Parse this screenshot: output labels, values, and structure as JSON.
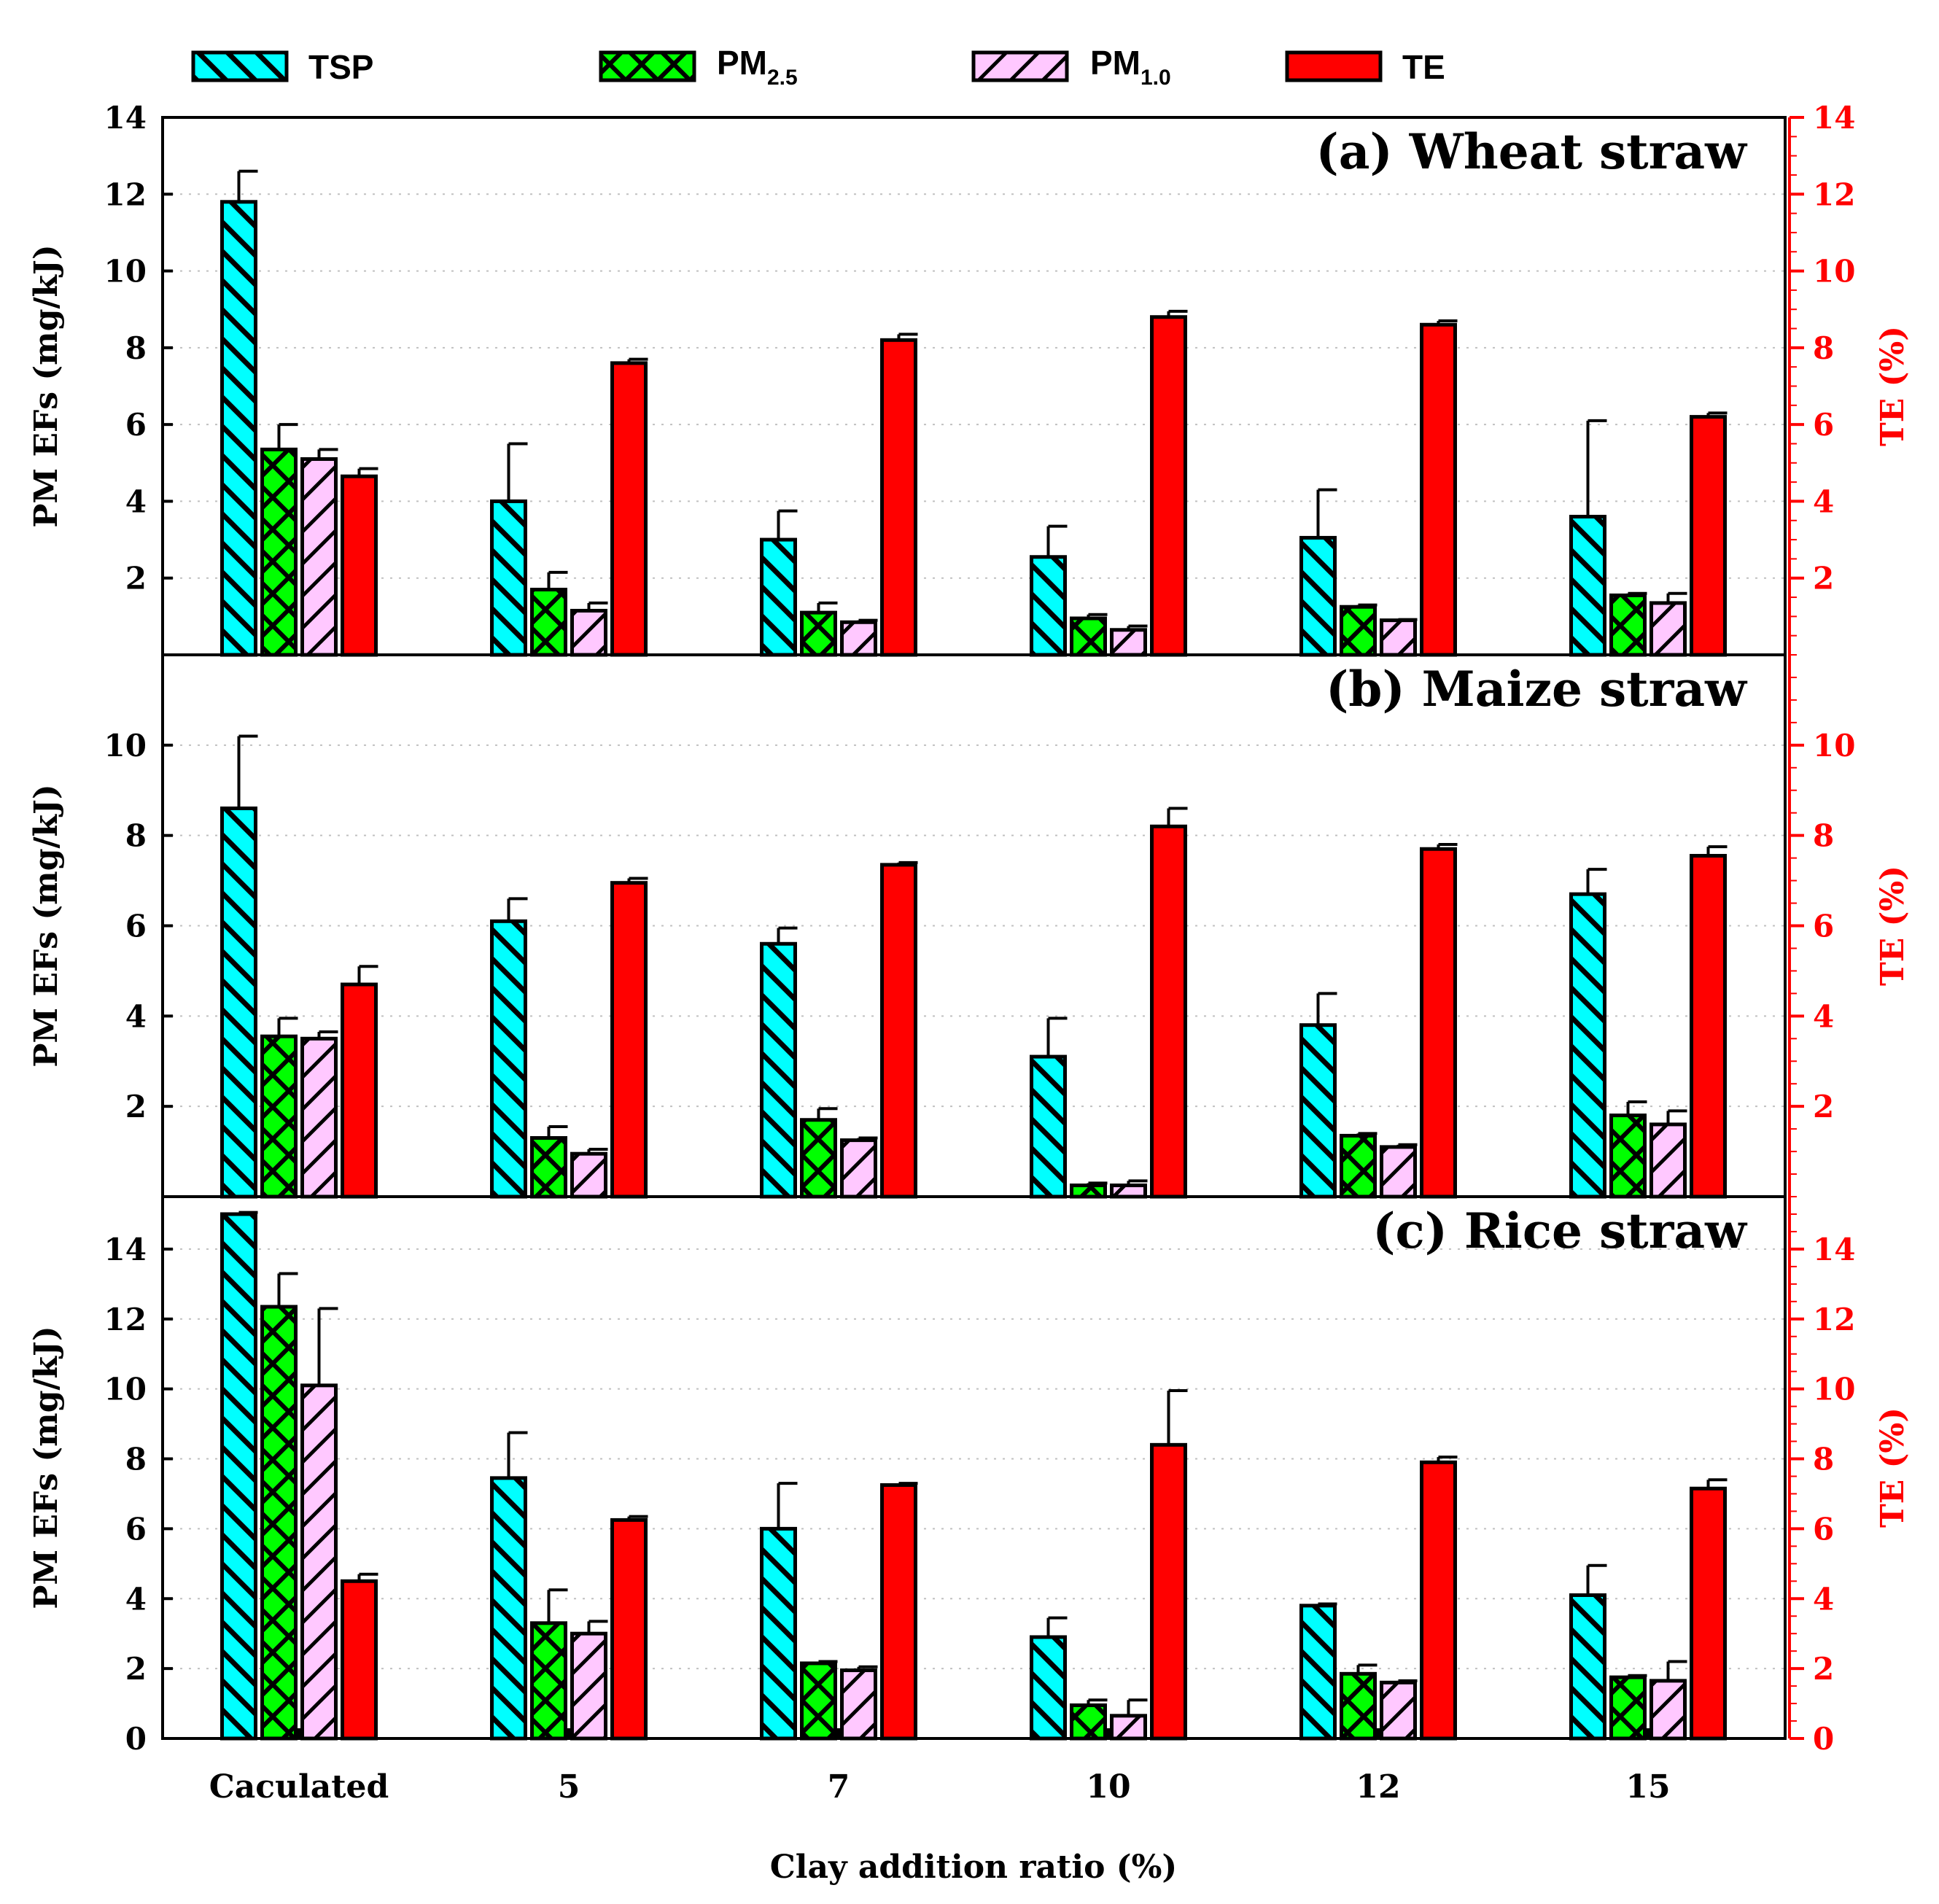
{
  "legend": [
    {
      "key": "tsp",
      "label": "TSP",
      "sub": "",
      "fill": "#00ffff",
      "pattern": "hatch-back"
    },
    {
      "key": "pm25",
      "label": "PM",
      "sub": "2.5",
      "fill": "#00ff00",
      "pattern": "cross"
    },
    {
      "key": "pm10",
      "label": "PM",
      "sub": "1.0",
      "fill": "#ffc8ff",
      "pattern": "hatch-fwd"
    },
    {
      "key": "te",
      "label": "TE",
      "sub": "",
      "fill": "#ff0000",
      "pattern": "solid"
    }
  ],
  "axes": {
    "left_label": "PM EFs  (mg/kJ)",
    "right_label": "TE (%)",
    "x_label": "Clay addition ratio (%)"
  },
  "colors": {
    "right_axis": "#ff0000",
    "tsp": "#00ffff",
    "pm25": "#00ff00",
    "pm10": "#ffc8ff",
    "te": "#ff0000"
  },
  "chart_data": [
    {
      "type": "bar",
      "title": "(a) Wheat straw",
      "categories": [
        "Caculated",
        "5",
        "7",
        "10",
        "12",
        "15"
      ],
      "ylim": [
        0,
        14
      ],
      "yticks": [
        2,
        4,
        6,
        8,
        10,
        12,
        14
      ],
      "series": [
        {
          "name": "TSP",
          "values": [
            11.8,
            4.0,
            3.0,
            2.55,
            3.05,
            3.6
          ],
          "errors": [
            0.8,
            1.5,
            0.75,
            0.8,
            1.25,
            2.5
          ]
        },
        {
          "name": "PM2.5",
          "values": [
            5.35,
            1.7,
            1.1,
            0.95,
            1.25,
            1.55
          ],
          "errors": [
            0.65,
            0.45,
            0.25,
            0.1,
            0.05,
            0.05
          ]
        },
        {
          "name": "PM1.0",
          "values": [
            5.1,
            1.15,
            0.85,
            0.65,
            0.9,
            1.35
          ],
          "errors": [
            0.25,
            0.2,
            0.05,
            0.1,
            0.02,
            0.25
          ]
        },
        {
          "name": "TE",
          "values": [
            4.65,
            7.6,
            8.2,
            8.8,
            8.6,
            6.2
          ],
          "errors": [
            0.2,
            0.1,
            0.15,
            0.15,
            0.1,
            0.1
          ],
          "axis": "right"
        }
      ]
    },
    {
      "type": "bar",
      "title": "(b) Maize straw",
      "categories": [
        "Caculated",
        "5",
        "7",
        "10",
        "12",
        "15"
      ],
      "ylim": [
        0,
        12
      ],
      "yticks": [
        2,
        4,
        6,
        8,
        10
      ],
      "series": [
        {
          "name": "TSP",
          "values": [
            8.6,
            6.1,
            5.6,
            3.1,
            3.8,
            6.7
          ],
          "errors": [
            1.6,
            0.5,
            0.35,
            0.85,
            0.7,
            0.55
          ]
        },
        {
          "name": "PM2.5",
          "values": [
            3.55,
            1.3,
            1.7,
            0.25,
            1.35,
            1.8
          ],
          "errors": [
            0.4,
            0.25,
            0.25,
            0.05,
            0.05,
            0.3
          ]
        },
        {
          "name": "PM1.0",
          "values": [
            3.5,
            0.95,
            1.25,
            0.25,
            1.1,
            1.6
          ],
          "errors": [
            0.15,
            0.1,
            0.05,
            0.1,
            0.05,
            0.3
          ]
        },
        {
          "name": "TE",
          "values": [
            4.7,
            6.95,
            7.35,
            8.2,
            7.7,
            7.55
          ],
          "errors": [
            0.4,
            0.1,
            0.05,
            0.4,
            0.1,
            0.2
          ],
          "axis": "right"
        }
      ]
    },
    {
      "type": "bar",
      "title": "(c) Rice straw",
      "categories": [
        "Caculated",
        "5",
        "7",
        "10",
        "12",
        "15"
      ],
      "ylim": [
        0,
        15.5
      ],
      "yticks": [
        0,
        2,
        4,
        6,
        8,
        10,
        12,
        14
      ],
      "series": [
        {
          "name": "TSP",
          "values": [
            15.0,
            7.45,
            6.0,
            2.9,
            3.8,
            4.1
          ],
          "errors": [
            0.05,
            1.3,
            1.3,
            0.55,
            0.05,
            0.85
          ]
        },
        {
          "name": "PM2.5",
          "values": [
            12.35,
            3.3,
            2.15,
            0.95,
            1.85,
            1.75
          ],
          "errors": [
            0.95,
            0.95,
            0.05,
            0.15,
            0.25,
            0.05
          ]
        },
        {
          "name": "PM1.0",
          "values": [
            10.1,
            3.0,
            1.95,
            0.65,
            1.6,
            1.65
          ],
          "errors": [
            2.2,
            0.35,
            0.1,
            0.45,
            0.05,
            0.55
          ]
        },
        {
          "name": "TE",
          "values": [
            4.5,
            6.25,
            7.25,
            8.4,
            7.9,
            7.15
          ],
          "errors": [
            0.2,
            0.1,
            0.05,
            1.55,
            0.15,
            0.25
          ],
          "axis": "right"
        }
      ]
    }
  ]
}
